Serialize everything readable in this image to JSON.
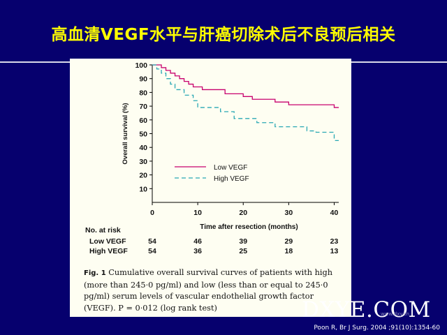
{
  "slide": {
    "title": "高血清VEGF水平与肝癌切除术后不良预后相关",
    "citation": "Poon R, Br J Surg. 2004 ;91(10):1354-60",
    "watermark": "DXYE.COM",
    "watermark_sub": "www.dxy.cn"
  },
  "colors": {
    "background": "#06006e",
    "title": "#ffff00",
    "panel": "#fefef2",
    "low_vegf": "#c8006e",
    "high_vegf": "#29a8b4"
  },
  "chart_data": {
    "type": "line",
    "xlabel": "Time after resection (months)",
    "ylabel": "Overall survival (%)",
    "xlim": [
      0,
      41
    ],
    "ylim": [
      0,
      100
    ],
    "xticks": [
      0,
      10,
      20,
      30,
      40
    ],
    "yticks": [
      10,
      20,
      30,
      40,
      50,
      60,
      70,
      80,
      90,
      100
    ],
    "grid": false,
    "legend_position": "center",
    "series": [
      {
        "name": "Low VEGF",
        "style": "solid",
        "color": "#c8006e",
        "x": [
          0,
          2,
          3,
          4,
          5,
          6,
          7,
          8,
          9,
          11,
          16,
          20,
          22,
          26,
          27,
          29,
          30,
          35,
          40,
          41
        ],
        "y": [
          100,
          98,
          96,
          94,
          92,
          90,
          88,
          86,
          84,
          82,
          79,
          77,
          75,
          75,
          73,
          73,
          71,
          71,
          69,
          69
        ]
      },
      {
        "name": "High VEGF",
        "style": "dashed",
        "color": "#29a8b4",
        "x": [
          0,
          1,
          2,
          3,
          4,
          5,
          7,
          9,
          10,
          12,
          15,
          18,
          22,
          23,
          27,
          34,
          36,
          40,
          41
        ],
        "y": [
          100,
          97,
          94,
          90,
          86,
          82,
          78,
          74,
          69,
          69,
          66,
          61,
          61,
          58,
          55,
          52,
          51,
          45,
          45
        ]
      }
    ],
    "risk_table": {
      "header": "No. at risk",
      "time_points": [
        0,
        10,
        20,
        30,
        40
      ],
      "rows": [
        {
          "label": "Low VEGF",
          "values": [
            54,
            46,
            39,
            29,
            23
          ]
        },
        {
          "label": "High VEGF",
          "values": [
            54,
            36,
            25,
            18,
            13
          ]
        }
      ]
    },
    "caption": {
      "figure_number": "Fig. 1",
      "text": "Cumulative overall survival curves of patients with high (more than 245·0 pg/ml) and low (less than or equal to 245·0 pg/ml) serum levels of vascular endothelial growth factor (VEGF). P = 0·012 (log rank test)"
    }
  }
}
